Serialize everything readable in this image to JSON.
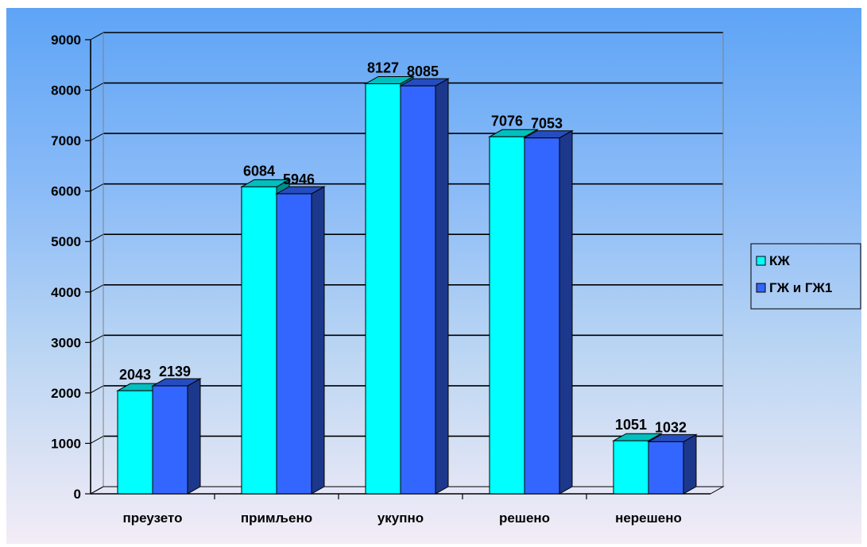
{
  "chart_data": {
    "type": "bar",
    "title": "",
    "xlabel": "",
    "ylabel": "",
    "categories": [
      "преузето",
      "примљено",
      "укупно",
      "решено",
      "нерешено"
    ],
    "series": [
      {
        "name": "КЖ",
        "values": [
          2043,
          6084,
          8127,
          7076,
          1051
        ],
        "color": "#00ffff"
      },
      {
        "name": "ГЖ и ГЖ1",
        "values": [
          2139,
          5946,
          8085,
          7053,
          1032
        ],
        "color": "#3366ff"
      }
    ],
    "ylim": [
      0,
      9000
    ],
    "yticks": [
      "0",
      "1000",
      "2000",
      "3000",
      "4000",
      "5000",
      "6000",
      "7000",
      "8000",
      "9000"
    ],
    "grid": true,
    "legend_position": "right",
    "data_labels": true,
    "style": "3d-column"
  }
}
